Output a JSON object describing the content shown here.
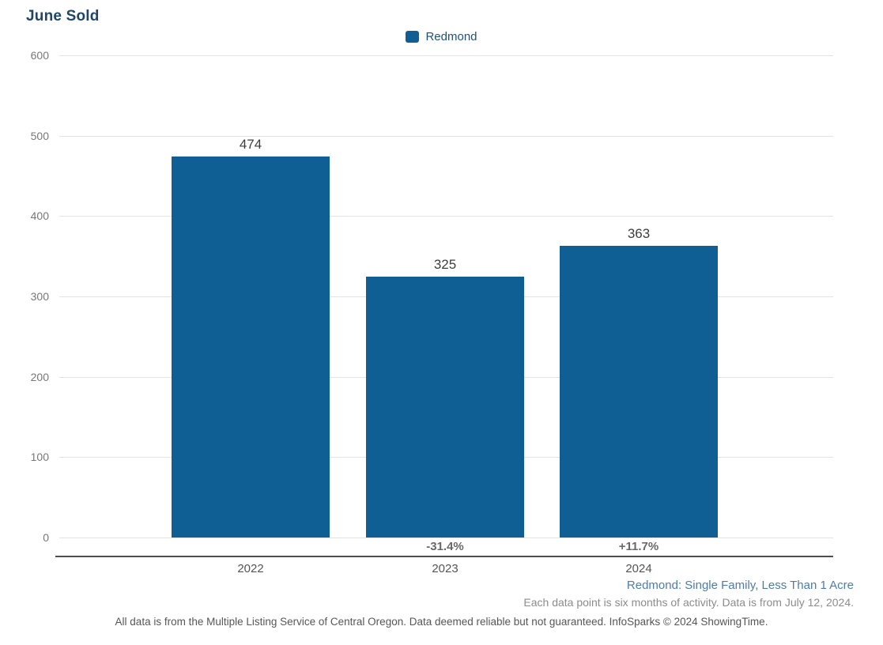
{
  "title": "June Sold",
  "legend": {
    "label": "Redmond"
  },
  "chart_data": {
    "type": "bar",
    "title": "June Sold",
    "series_name": "Redmond",
    "categories": [
      "2022",
      "2023",
      "2024"
    ],
    "values": [
      474,
      325,
      363
    ],
    "value_labels": [
      "474",
      "325",
      "363"
    ],
    "change_labels": [
      "",
      "-31.4%",
      "+11.7%"
    ],
    "yticks": [
      0,
      100,
      200,
      300,
      400,
      500,
      600
    ],
    "ylim": [
      0,
      600
    ],
    "xlabel": "",
    "ylabel": "",
    "grid": "horizontal",
    "legend_position": "top-center",
    "bar_color": "#105f94"
  },
  "colors": {
    "bar": "#105f94",
    "title_text": "#1d4668",
    "legend_text": "#1f5276",
    "filter_note_text": "#4d7cac"
  },
  "footnotes": {
    "filter_line": "Redmond: Single Family, Less Than 1 Acre",
    "activity_line": "Each data point is six months of activity. Data is from July 12, 2024.",
    "disclaimer_line": "All data is from the Multiple Listing Service of Central Oregon. Data deemed reliable but not guaranteed. InfoSparks © 2024 ShowingTime."
  }
}
